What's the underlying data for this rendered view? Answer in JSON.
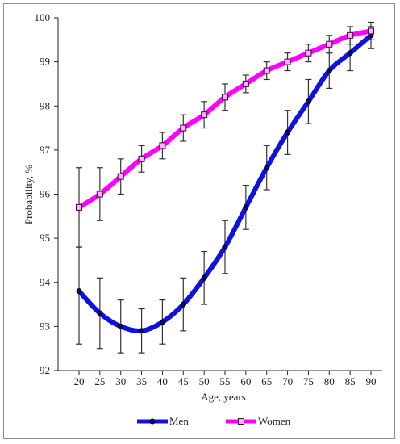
{
  "chart_data": {
    "type": "line",
    "title": "",
    "xlabel": "Age, years",
    "ylabel": "Probability, %",
    "x": [
      20,
      25,
      30,
      35,
      40,
      45,
      50,
      55,
      60,
      65,
      70,
      75,
      80,
      85,
      90
    ],
    "xticks": [
      "20",
      "25",
      "30",
      "35",
      "40",
      "45",
      "50",
      "55",
      "60",
      "65",
      "70",
      "75",
      "80",
      "85",
      "90"
    ],
    "ylim": [
      92,
      100
    ],
    "yticks": [
      "92",
      "93",
      "94",
      "95",
      "96",
      "97",
      "98",
      "99",
      "100"
    ],
    "grid": false,
    "legend": "bottom",
    "series": [
      {
        "name": "Men",
        "color": "#1010e0",
        "marker": "circle",
        "values": [
          93.8,
          93.3,
          93.0,
          92.9,
          93.1,
          93.5,
          94.1,
          94.8,
          95.7,
          96.6,
          97.4,
          98.1,
          98.8,
          99.2,
          99.6
        ],
        "err_low": [
          92.6,
          92.5,
          92.4,
          92.4,
          92.6,
          92.9,
          93.5,
          94.2,
          95.2,
          96.1,
          96.9,
          97.6,
          98.4,
          98.8,
          99.3
        ],
        "err_high": [
          94.8,
          94.1,
          93.6,
          93.4,
          93.6,
          94.1,
          94.7,
          95.4,
          96.2,
          97.1,
          97.9,
          98.6,
          99.2,
          99.6,
          99.8
        ]
      },
      {
        "name": "Women",
        "color": "#ff00ff",
        "marker": "square",
        "values": [
          95.7,
          96.0,
          96.4,
          96.8,
          97.1,
          97.5,
          97.8,
          98.2,
          98.5,
          98.8,
          99.0,
          99.2,
          99.4,
          99.6,
          99.7
        ],
        "err_low": [
          94.8,
          95.4,
          96.0,
          96.5,
          96.8,
          97.2,
          97.5,
          97.9,
          98.3,
          98.6,
          98.8,
          99.0,
          99.2,
          99.4,
          99.5
        ],
        "err_high": [
          96.6,
          96.6,
          96.8,
          97.1,
          97.4,
          97.8,
          98.1,
          98.5,
          98.7,
          99.0,
          99.2,
          99.4,
          99.6,
          99.8,
          99.9
        ]
      }
    ]
  }
}
